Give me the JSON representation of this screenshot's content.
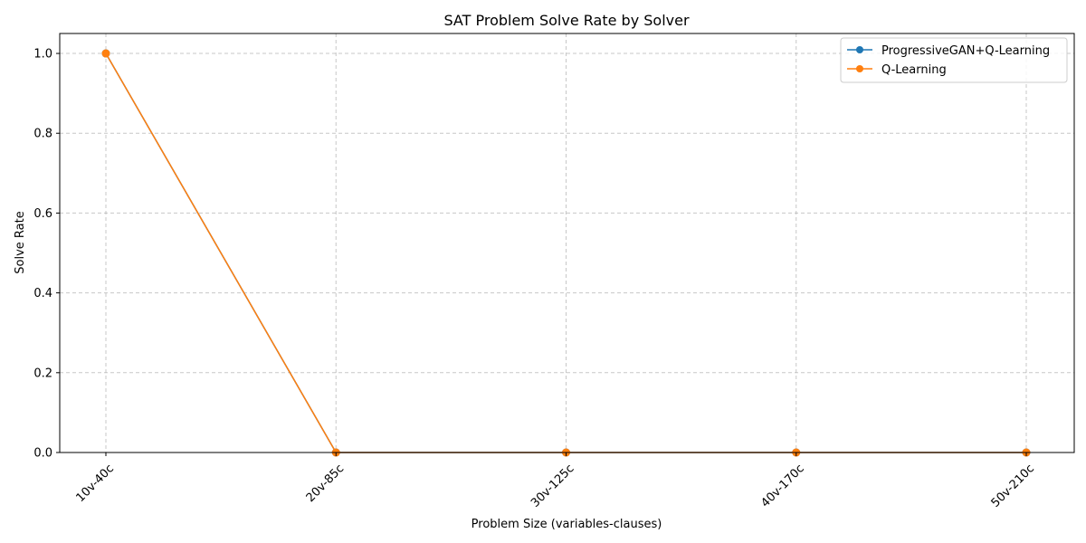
{
  "chart_data": {
    "type": "line",
    "title": "SAT Problem Solve Rate by Solver",
    "xlabel": "Problem Size (variables-clauses)",
    "ylabel": "Solve Rate",
    "categories": [
      "10v-40c",
      "20v-85c",
      "30v-125c",
      "40v-170c",
      "50v-210c"
    ],
    "ylim": [
      0,
      1.05
    ],
    "yticks": [
      "0.0",
      "0.2",
      "0.4",
      "0.6",
      "0.8",
      "1.0"
    ],
    "grid": true,
    "legend_position": "top-right",
    "series": [
      {
        "name": "ProgressiveGAN+Q-Learning",
        "values": [
          1.0,
          0.0,
          0.0,
          0.0,
          0.0
        ],
        "color": "#1f77b4",
        "marker": "circle"
      },
      {
        "name": "Q-Learning",
        "values": [
          1.0,
          0.0,
          0.0,
          0.0,
          0.0
        ],
        "color": "#ff7f0e",
        "marker": "circle"
      }
    ]
  }
}
